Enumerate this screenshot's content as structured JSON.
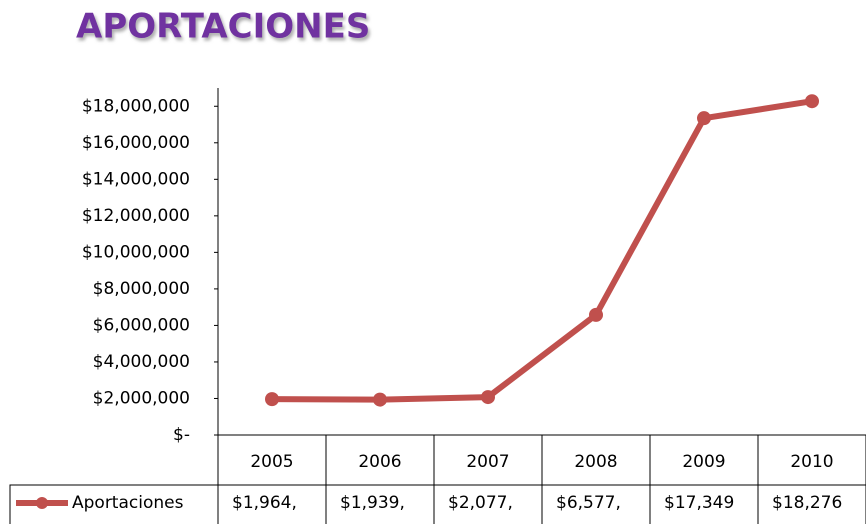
{
  "chart_data": {
    "type": "line",
    "title": "APORTACIONES",
    "categories": [
      "2005",
      "2006",
      "2007",
      "2008",
      "2009",
      "2010"
    ],
    "series": [
      {
        "name": "Aportaciones",
        "color": "#c0504d",
        "values": [
          1964000,
          1939000,
          2077000,
          6577000,
          17349000,
          18276000
        ],
        "value_labels": [
          "$1,964,",
          "$1,939,",
          "$2,077,",
          "$6,577,",
          "$17,349",
          "$18,276"
        ]
      }
    ],
    "ylim": [
      0,
      19000000
    ],
    "yticks": [
      {
        "value": 0,
        "label": "$-"
      },
      {
        "value": 2000000,
        "label": "$2,000,000"
      },
      {
        "value": 4000000,
        "label": "$4,000,000"
      },
      {
        "value": 6000000,
        "label": "$6,000,000"
      },
      {
        "value": 8000000,
        "label": "$8,000,000"
      },
      {
        "value": 10000000,
        "label": "$10,000,000"
      },
      {
        "value": 12000000,
        "label": "$12,000,000"
      },
      {
        "value": 14000000,
        "label": "$14,000,000"
      },
      {
        "value": 16000000,
        "label": "$16,000,000"
      },
      {
        "value": 18000000,
        "label": "$18,000,000"
      }
    ],
    "grid": false
  }
}
